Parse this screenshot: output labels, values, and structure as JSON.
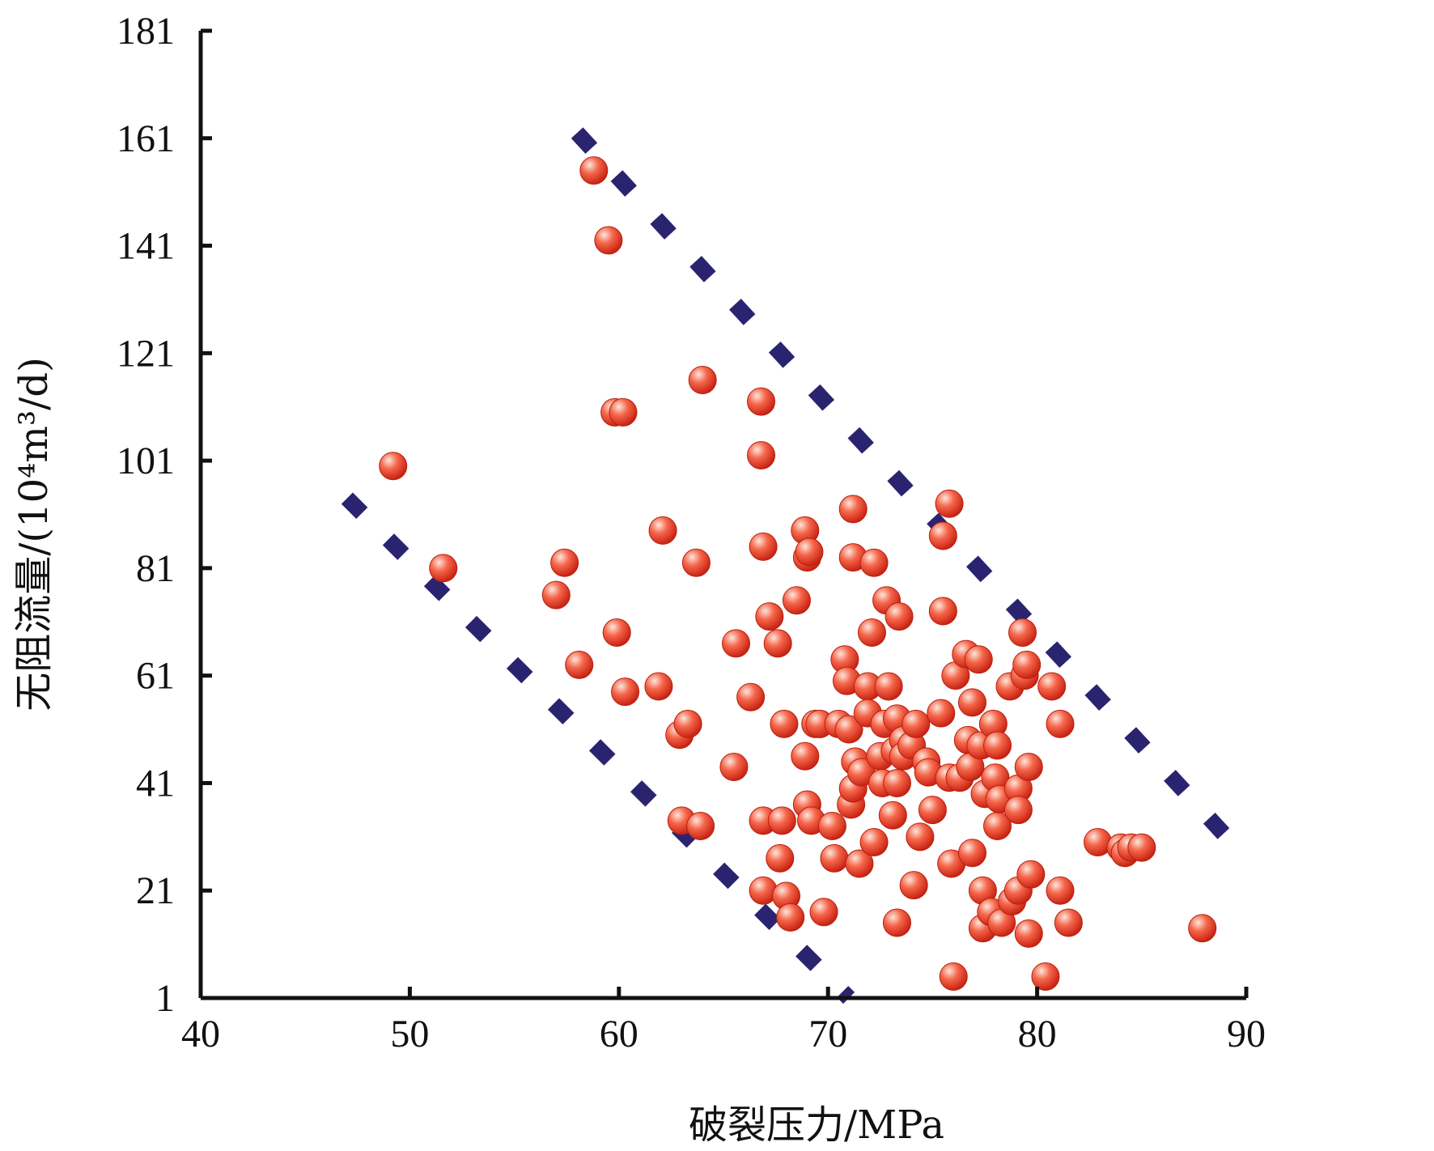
{
  "chart_data": {
    "type": "scatter",
    "title": "",
    "xlabel": "破裂压力/MPa",
    "ylabel": "无阻流量/(10⁴m³/d)",
    "xlim": [
      40,
      90
    ],
    "ylim": [
      1,
      181
    ],
    "x_ticks": [
      40,
      50,
      60,
      70,
      80,
      90
    ],
    "y_ticks": [
      1,
      21,
      41,
      61,
      81,
      101,
      121,
      141,
      161,
      181
    ],
    "grid": false,
    "legend": "none",
    "colors": {
      "points": "#e83a24",
      "points_highlight": "#fde6dc",
      "envelope": "#2a2470",
      "axis": "#111111"
    },
    "series": [
      {
        "values": [
          [
            58.8,
            155
          ],
          [
            59.5,
            142
          ],
          [
            49.2,
            100
          ],
          [
            51.6,
            81
          ],
          [
            57.0,
            76
          ],
          [
            57.4,
            82
          ],
          [
            58.1,
            63
          ],
          [
            59.8,
            110
          ],
          [
            60.2,
            110
          ],
          [
            59.9,
            69
          ],
          [
            60.3,
            58
          ],
          [
            61.9,
            59
          ],
          [
            62.1,
            88
          ],
          [
            62.9,
            50
          ],
          [
            63.3,
            52
          ],
          [
            63.0,
            34
          ],
          [
            63.9,
            33
          ],
          [
            63.7,
            82
          ],
          [
            64.0,
            116
          ],
          [
            65.5,
            44
          ],
          [
            65.6,
            67
          ],
          [
            66.3,
            57
          ],
          [
            66.8,
            112
          ],
          [
            66.8,
            102
          ],
          [
            66.9,
            85
          ],
          [
            66.9,
            21
          ],
          [
            66.9,
            34
          ],
          [
            67.2,
            72
          ],
          [
            67.6,
            67
          ],
          [
            67.7,
            27
          ],
          [
            67.8,
            34
          ],
          [
            67.9,
            52
          ],
          [
            68.0,
            20
          ],
          [
            68.2,
            16
          ],
          [
            68.5,
            75
          ],
          [
            68.9,
            88
          ],
          [
            69.0,
            83
          ],
          [
            69.1,
            84
          ],
          [
            68.9,
            46
          ],
          [
            69.0,
            37
          ],
          [
            69.2,
            34
          ],
          [
            69.4,
            52
          ],
          [
            69.6,
            52
          ],
          [
            69.8,
            17
          ],
          [
            70.2,
            33
          ],
          [
            70.3,
            27
          ],
          [
            70.5,
            52
          ],
          [
            70.8,
            64
          ],
          [
            70.9,
            60
          ],
          [
            71.0,
            51
          ],
          [
            71.1,
            37
          ],
          [
            71.2,
            40
          ],
          [
            71.3,
            45
          ],
          [
            71.2,
            92
          ],
          [
            71.2,
            83
          ],
          [
            71.5,
            26
          ],
          [
            71.6,
            43
          ],
          [
            71.9,
            59
          ],
          [
            71.9,
            54
          ],
          [
            72.1,
            69
          ],
          [
            72.2,
            82
          ],
          [
            72.2,
            30
          ],
          [
            72.5,
            46
          ],
          [
            72.6,
            41
          ],
          [
            72.7,
            52
          ],
          [
            72.8,
            75
          ],
          [
            72.9,
            59
          ],
          [
            73.1,
            35
          ],
          [
            73.2,
            47
          ],
          [
            73.3,
            41
          ],
          [
            73.4,
            72
          ],
          [
            73.3,
            53
          ],
          [
            73.6,
            49
          ],
          [
            73.6,
            46
          ],
          [
            73.3,
            15
          ],
          [
            74.0,
            48
          ],
          [
            74.1,
            22
          ],
          [
            74.2,
            52
          ],
          [
            74.4,
            31
          ],
          [
            74.7,
            45
          ],
          [
            74.8,
            43
          ],
          [
            75.0,
            36
          ],
          [
            75.4,
            54
          ],
          [
            75.5,
            87
          ],
          [
            75.5,
            73
          ],
          [
            75.8,
            93
          ],
          [
            75.8,
            42
          ],
          [
            75.9,
            26
          ],
          [
            76.0,
            5
          ],
          [
            76.1,
            61
          ],
          [
            76.3,
            42
          ],
          [
            76.6,
            65
          ],
          [
            76.7,
            49
          ],
          [
            76.8,
            44
          ],
          [
            76.9,
            56
          ],
          [
            76.9,
            28
          ],
          [
            77.2,
            64
          ],
          [
            77.3,
            48
          ],
          [
            77.4,
            21
          ],
          [
            77.4,
            14
          ],
          [
            77.5,
            39
          ],
          [
            77.8,
            17
          ],
          [
            77.9,
            52
          ],
          [
            78.0,
            42
          ],
          [
            78.1,
            48
          ],
          [
            78.1,
            33
          ],
          [
            78.2,
            38
          ],
          [
            78.3,
            15
          ],
          [
            78.7,
            59
          ],
          [
            78.8,
            19
          ],
          [
            79.1,
            40
          ],
          [
            79.1,
            36
          ],
          [
            79.1,
            21
          ],
          [
            79.3,
            69
          ],
          [
            79.4,
            61
          ],
          [
            79.5,
            63
          ],
          [
            79.6,
            44
          ],
          [
            79.6,
            13
          ],
          [
            79.7,
            24
          ],
          [
            80.4,
            5
          ],
          [
            80.7,
            59
          ],
          [
            81.1,
            52
          ],
          [
            81.1,
            21
          ],
          [
            81.5,
            15
          ],
          [
            82.9,
            30
          ],
          [
            84.0,
            29
          ],
          [
            84.2,
            28
          ],
          [
            84.5,
            29
          ],
          [
            85.0,
            29
          ],
          [
            87.9,
            14
          ]
        ]
      }
    ],
    "envelope_lines": [
      {
        "x": [
          58.0,
          90.0
        ],
        "y": [
          162,
          27
        ]
      },
      {
        "x": [
          47.0,
          71.0
        ],
        "y": [
          94,
          1
        ]
      }
    ]
  }
}
